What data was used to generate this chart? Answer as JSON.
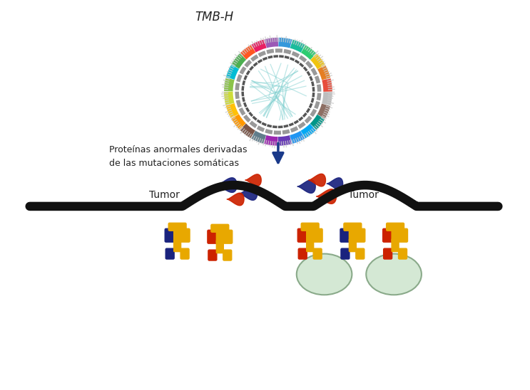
{
  "title": "TMB-H",
  "label_proteins": "Proteínas anormales derivadas\nde las mutaciones somáticas",
  "label_tumor_left": "Tumor",
  "label_tumor_right": "Tumor",
  "bg_color": "#ffffff",
  "membrane_color": "#111111",
  "arrow_color": "#1a3a8a",
  "navy": "#1a237e",
  "red": "#cc2200",
  "gold": "#e8a800",
  "green_cell": "#d4e8d4",
  "green_cell_edge": "#8aaa8a",
  "circos_colors": [
    "#e74c3c",
    "#e67e22",
    "#f1c40f",
    "#2ecc71",
    "#1abc9c",
    "#3498db",
    "#9b59b6",
    "#e91e63",
    "#ff5722",
    "#4caf50",
    "#00bcd4",
    "#8bc34a",
    "#cddc39",
    "#ffc107",
    "#ff9800",
    "#795548",
    "#607d8b",
    "#9c27b0",
    "#673ab7",
    "#2196f3",
    "#03a9f4",
    "#009688",
    "#8d6e63",
    "#bdbdbd"
  ]
}
